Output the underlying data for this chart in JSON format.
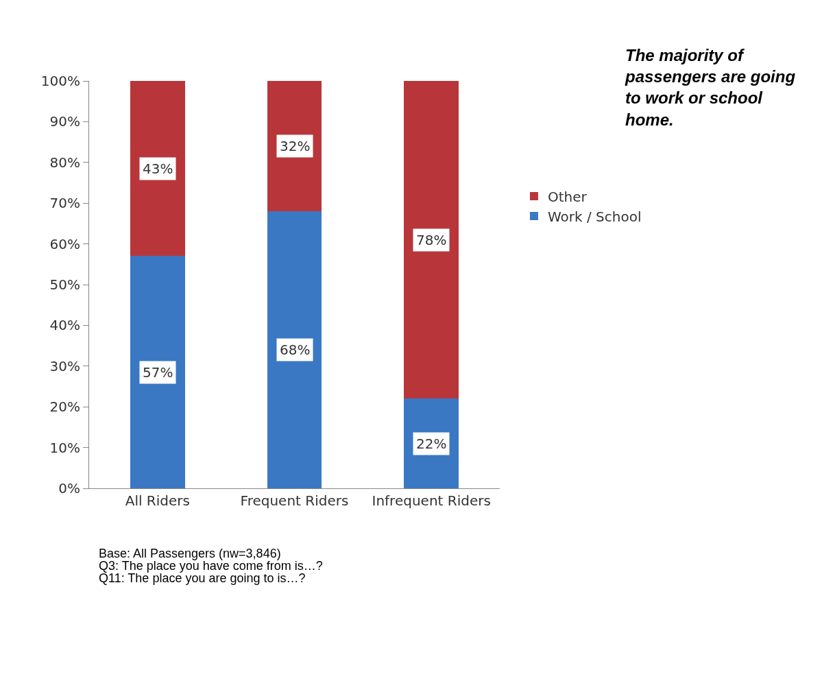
{
  "chart_data": {
    "type": "bar",
    "stacked": true,
    "title": "The majority of passengers are going to work or school home.",
    "categories": [
      "All Riders",
      "Frequent Riders",
      "Infrequent Riders"
    ],
    "series": [
      {
        "name": "Work / School",
        "color": "#3a78c4",
        "values": [
          57,
          68,
          22
        ],
        "value_labels": [
          "57%",
          "68%",
          "22%"
        ]
      },
      {
        "name": "Other",
        "color": "#b8363a",
        "values": [
          43,
          32,
          78
        ],
        "value_labels": [
          "43%",
          "32%",
          "78%"
        ]
      }
    ],
    "ylim": [
      0,
      100
    ],
    "yticks": [
      {
        "value": 0,
        "label": "0%"
      },
      {
        "value": 10,
        "label": "10%"
      },
      {
        "value": 20,
        "label": "20%"
      },
      {
        "value": 30,
        "label": "30%"
      },
      {
        "value": 40,
        "label": "40%"
      },
      {
        "value": 50,
        "label": "50%"
      },
      {
        "value": 60,
        "label": "60%"
      },
      {
        "value": 70,
        "label": "70%"
      },
      {
        "value": 80,
        "label": "80%"
      },
      {
        "value": 90,
        "label": "90%"
      },
      {
        "value": 100,
        "label": "100%"
      }
    ],
    "legend": "right",
    "annotations": [
      "Base: All Passengers (nw=3,846)",
      "Q3: The place you have come from is…?",
      "Q11: The place you are going to is…?"
    ]
  }
}
